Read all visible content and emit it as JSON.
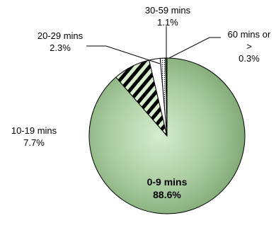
{
  "chart_data": {
    "type": "pie",
    "title": "",
    "start_angle_deg": 0,
    "direction": "clockwise",
    "slices": [
      {
        "label": "0-9 mins",
        "value": 88.6,
        "value_label": "88.6%",
        "fill": "gradient-green",
        "pattern": "none"
      },
      {
        "label": "10-19 mins",
        "value": 7.7,
        "value_label": "7.7%",
        "fill": "#d9f0d0",
        "pattern": "diagonal-stripes"
      },
      {
        "label": "20-29 mins",
        "value": 2.3,
        "value_label": "2.3%",
        "fill": "#ffffff",
        "pattern": "none"
      },
      {
        "label": "30-59 mins",
        "value": 1.1,
        "value_label": "1.1%",
        "fill": "#ffffff",
        "pattern": "dots"
      },
      {
        "label": "60 mins or >",
        "label_lines": [
          "60 mins or",
          ">"
        ],
        "value": 0.3,
        "value_label": "0.3%",
        "fill": "#2f5f2f",
        "pattern": "none"
      }
    ],
    "colors": {
      "gradient_center": "#d6ecd0",
      "gradient_mid": "#a9cc9f",
      "gradient_edge": "#7aa370",
      "stripe": "#000000",
      "slice_border": "#000000"
    },
    "legend": "none"
  }
}
